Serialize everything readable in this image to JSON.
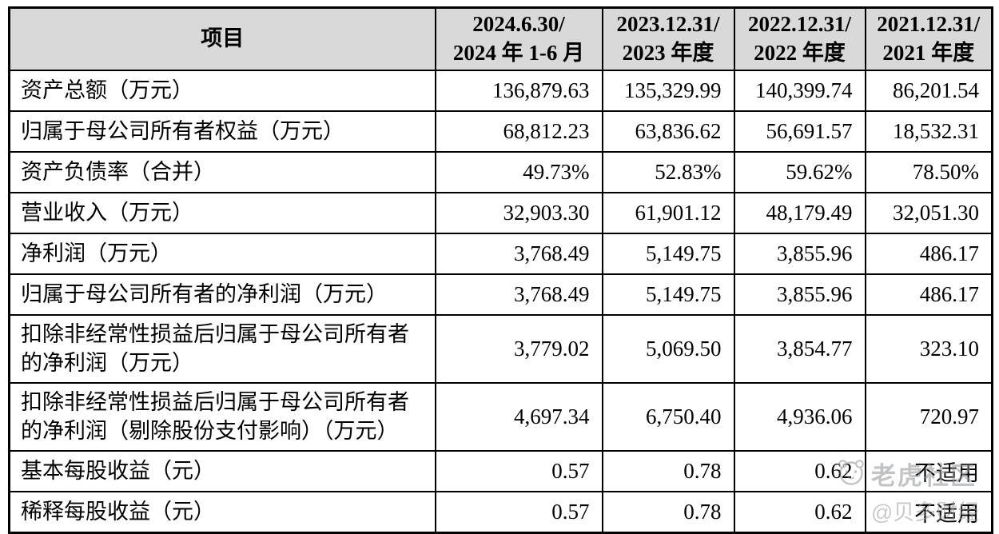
{
  "table": {
    "header": {
      "item_label": "项目",
      "periods": [
        {
          "line1": "2024.6.30/",
          "line2": "2024 年 1-6 月"
        },
        {
          "line1": "2023.12.31/",
          "line2": "2023 年度"
        },
        {
          "line1": "2022.12.31/",
          "line2": "2022 年度"
        },
        {
          "line1": "2021.12.31/",
          "line2": "2021 年度"
        }
      ]
    },
    "rows": [
      {
        "label": "资产总额（万元）",
        "values": [
          "136,879.63",
          "135,329.99",
          "140,399.74",
          "86,201.54"
        ]
      },
      {
        "label": "归属于母公司所有者权益（万元）",
        "values": [
          "68,812.23",
          "63,836.62",
          "56,691.57",
          "18,532.31"
        ]
      },
      {
        "label": "资产负债率（合并）",
        "values": [
          "49.73%",
          "52.83%",
          "59.62%",
          "78.50%"
        ]
      },
      {
        "label": "营业收入（万元）",
        "values": [
          "32,903.30",
          "61,901.12",
          "48,179.49",
          "32,051.30"
        ]
      },
      {
        "label": "净利润（万元）",
        "values": [
          "3,768.49",
          "5,149.75",
          "3,855.96",
          "486.17"
        ]
      },
      {
        "label": "归属于母公司所有者的净利润（万元）",
        "values": [
          "3,768.49",
          "5,149.75",
          "3,855.96",
          "486.17"
        ]
      },
      {
        "label": "扣除非经常性损益后归属于母公司所有者的净利润（万元）",
        "values": [
          "3,779.02",
          "5,069.50",
          "3,854.77",
          "323.10"
        ]
      },
      {
        "label": "扣除非经常性损益后归属于母公司所有者的净利润（剔除股份支付影响）（万元）",
        "values": [
          "4,697.34",
          "6,750.40",
          "4,936.06",
          "720.97"
        ]
      },
      {
        "label": "基本每股收益（元）",
        "values": [
          "0.57",
          "0.78",
          "0.62",
          "不适用"
        ]
      },
      {
        "label": "稀释每股收益（元）",
        "values": [
          "0.57",
          "0.78",
          "0.62",
          "不适用"
        ]
      }
    ]
  },
  "watermark": {
    "brand": "老虎社区",
    "handle": "@贝多财经",
    "icon": "tiger-face-icon",
    "color": "#8f9397"
  },
  "colors": {
    "header_bg": "#d9d9d9",
    "border": "#000000",
    "text": "#000000",
    "page_bg": "#ffffff"
  }
}
